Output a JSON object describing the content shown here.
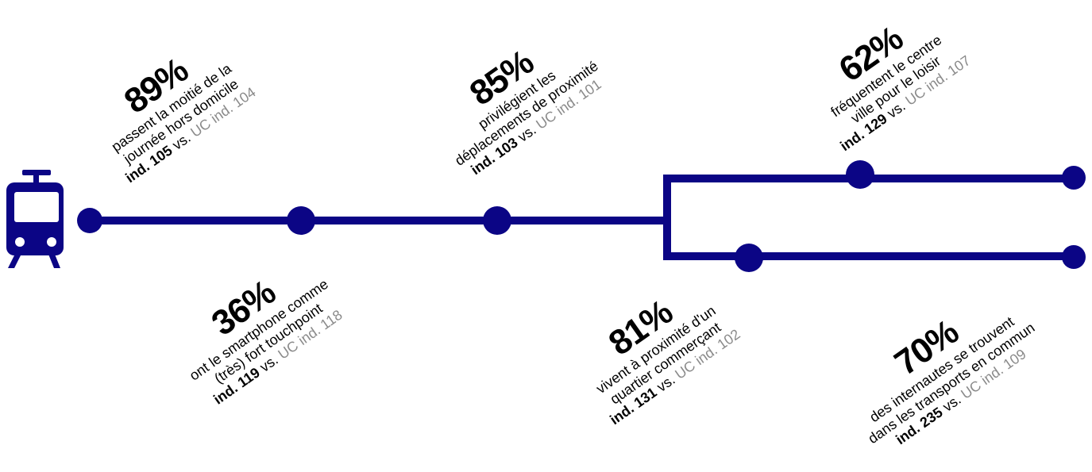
{
  "colors": {
    "line": "#0b0585",
    "muted": "#8a8a8a",
    "text": "#000000"
  },
  "icon": "train-icon",
  "stats": [
    {
      "id": "s1",
      "pct": "89%",
      "lines": [
        "passent la moitié de la",
        "journée hors domicile"
      ],
      "ind_label": "ind.",
      "ind": "105",
      "vs": "vs.",
      "uc": "UC ind. 104"
    },
    {
      "id": "s2",
      "pct": "36%",
      "lines": [
        "ont le smartphone comme",
        "(très) fort touchpoint"
      ],
      "ind_label": "ind.",
      "ind": "119",
      "vs": "vs.",
      "uc": "UC ind. 118"
    },
    {
      "id": "s3",
      "pct": "85%",
      "lines": [
        "privilégient les",
        "déplacements de proximité"
      ],
      "ind_label": "ind.",
      "ind": "103",
      "vs": "vs.",
      "uc": "UC ind. 101"
    },
    {
      "id": "s4",
      "pct": "81%",
      "lines": [
        "vivent à proximité d'un",
        "quartier commerçant"
      ],
      "ind_label": "ind.",
      "ind": "131",
      "vs": "vs.",
      "uc": "UC ind. 102"
    },
    {
      "id": "s5",
      "pct": "62%",
      "lines": [
        "fréquentent le centre",
        "ville pour le loisir"
      ],
      "ind_label": "ind.",
      "ind": "129",
      "vs": "vs.",
      "uc": "UC ind. 107"
    },
    {
      "id": "s6",
      "pct": "70%",
      "lines": [
        "des internautes se trouvent",
        "dans les transports en commun"
      ],
      "ind_label": "ind.",
      "ind": "235",
      "vs": "vs.",
      "uc": "UC ind. 109"
    }
  ]
}
